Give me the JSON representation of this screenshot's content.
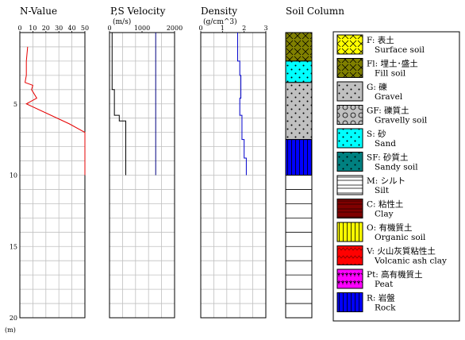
{
  "chart_data": [
    {
      "type": "line",
      "title": "N-Value",
      "x_ticks": [
        "0",
        "10",
        "20",
        "30",
        "40",
        "50"
      ],
      "xlim": [
        0,
        50
      ],
      "ylim": [
        0,
        20
      ],
      "y_ticks": [
        "5",
        "10",
        "15",
        "20"
      ],
      "y_unit": "(m)",
      "grid": true,
      "color": "#e60000",
      "series": [
        {
          "x": [
            6,
            5,
            5,
            4,
            10,
            9,
            13,
            5,
            38,
            50,
            50
          ],
          "y": [
            1.0,
            2.0,
            3.0,
            3.5,
            3.7,
            4.0,
            4.6,
            5.0,
            6.4,
            7.0,
            10.0
          ]
        }
      ]
    },
    {
      "type": "line",
      "title": "P,S Velocity",
      "unit": "(m/s)",
      "x_ticks": [
        "0",
        "1000",
        "2000"
      ],
      "xlim": [
        0,
        2000
      ],
      "ylim": [
        0,
        20
      ],
      "grid": true,
      "series": [
        {
          "color": "#000000",
          "x": [
            80,
            80,
            150,
            150,
            300,
            300,
            500,
            500
          ],
          "y": [
            0,
            4.0,
            4.0,
            5.8,
            5.8,
            6.2,
            6.2,
            10.0
          ]
        },
        {
          "color": "#000080",
          "x": [
            1420,
            1420
          ],
          "y": [
            0,
            10.0
          ]
        }
      ]
    },
    {
      "type": "line",
      "title": "Density",
      "unit": "(g/cm^3)",
      "x_ticks": [
        "0",
        "1",
        "2",
        "3"
      ],
      "xlim": [
        0,
        3
      ],
      "ylim": [
        0,
        20
      ],
      "grid": true,
      "color": "#0000cc",
      "series": [
        {
          "x": [
            1.7,
            1.7,
            1.8,
            1.8,
            1.85,
            1.85,
            1.8,
            1.8,
            1.9,
            1.9,
            2.0,
            2.0,
            2.1,
            2.1
          ],
          "y": [
            0,
            2.0,
            2.0,
            3.0,
            3.0,
            4.6,
            4.6,
            5.8,
            5.8,
            7.5,
            7.5,
            8.8,
            8.8,
            10.0
          ]
        }
      ]
    }
  ],
  "soil_column": {
    "title": "Soil Column",
    "layers": [
      {
        "code": "Fl",
        "top": 0,
        "bottom": 2.0
      },
      {
        "code": "S",
        "top": 2.0,
        "bottom": 3.5
      },
      {
        "code": "G",
        "top": 3.5,
        "bottom": 7.5
      },
      {
        "code": "R",
        "top": 7.5,
        "bottom": 10.0
      }
    ]
  },
  "legend": [
    {
      "code": "F",
      "label": "F: 表土",
      "sub": "Surface soil",
      "color": "#ffff00",
      "pattern": "cross"
    },
    {
      "code": "Fl",
      "label": "Fl: 埋土･盛土",
      "sub": "Fill soil",
      "color": "#808000",
      "pattern": "cross"
    },
    {
      "code": "G",
      "label": "G: 礫",
      "sub": "Gravel",
      "color": "#c0c0c0",
      "pattern": "dots"
    },
    {
      "code": "GF",
      "label": "GF: 礫質土",
      "sub": "Gravelly soil",
      "color": "#c0c0c0",
      "pattern": "circles"
    },
    {
      "code": "S",
      "label": "S: 砂",
      "sub": "Sand",
      "color": "#00ffff",
      "pattern": "dots"
    },
    {
      "code": "SF",
      "label": "SF: 砂質土",
      "sub": "Sandy soil",
      "color": "#008080",
      "pattern": "dots"
    },
    {
      "code": "M",
      "label": "M: シルト",
      "sub": "Silt",
      "color": "#ffffff",
      "pattern": "dashes"
    },
    {
      "code": "C",
      "label": "C: 粘性土",
      "sub": "Clay",
      "color": "#800000",
      "pattern": "hlines"
    },
    {
      "code": "O",
      "label": "O: 有機質土",
      "sub": "Organic soil",
      "color": "#ffff00",
      "pattern": "vlines"
    },
    {
      "code": "V",
      "label": "V: 火山灰質粘性土",
      "sub": "Volcanic ash clay",
      "color": "#ff0000",
      "pattern": "zigzag"
    },
    {
      "code": "Pt",
      "label": "Pt: 高有機質土",
      "sub": "Peat",
      "color": "#ff00ff",
      "pattern": "tufts"
    },
    {
      "code": "R",
      "label": "R: 岩盤",
      "sub": "Rock",
      "color": "#0000ff",
      "pattern": "vlines"
    }
  ]
}
